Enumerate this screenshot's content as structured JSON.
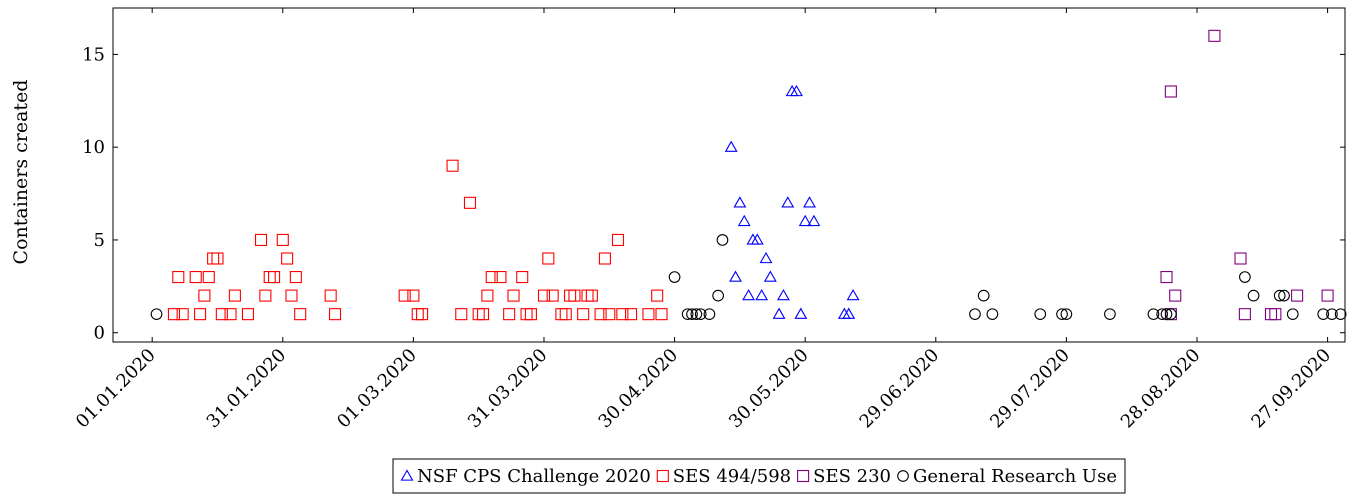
{
  "chart_data": {
    "type": "scatter",
    "title": "",
    "xlabel": "",
    "ylabel": "Containers created",
    "x_tick_labels": [
      "01.01.2020",
      "31.01.2020",
      "01.03.2020",
      "31.03.2020",
      "30.04.2020",
      "30.05.2020",
      "29.06.2020",
      "29.07.2020",
      "28.08.2020",
      "27.09.2020"
    ],
    "x_ticks": [
      "2020-01-01",
      "2020-01-31",
      "2020-03-01",
      "2020-03-31",
      "2020-04-30",
      "2020-05-30",
      "2020-06-29",
      "2020-07-29",
      "2020-08-28",
      "2020-09-27"
    ],
    "xlim": [
      "2019-12-23",
      "2020-10-01"
    ],
    "ylim": [
      -0.5,
      17.5
    ],
    "y_ticks": [
      0,
      5,
      10,
      15
    ],
    "grid": false,
    "legend_position": "bottom-center",
    "series": [
      {
        "name": "NSF CPS Challenge 2020",
        "marker": "triangle",
        "color": "#0000ff",
        "points": [
          [
            "2020-05-13",
            10
          ],
          [
            "2020-05-14",
            3
          ],
          [
            "2020-05-15",
            7
          ],
          [
            "2020-05-16",
            6
          ],
          [
            "2020-05-17",
            2
          ],
          [
            "2020-05-18",
            5
          ],
          [
            "2020-05-19",
            5
          ],
          [
            "2020-05-20",
            2
          ],
          [
            "2020-05-21",
            4
          ],
          [
            "2020-05-22",
            3
          ],
          [
            "2020-05-24",
            1
          ],
          [
            "2020-05-25",
            2
          ],
          [
            "2020-05-26",
            7
          ],
          [
            "2020-05-27",
            13
          ],
          [
            "2020-05-28",
            13
          ],
          [
            "2020-05-29",
            1
          ],
          [
            "2020-05-30",
            6
          ],
          [
            "2020-05-31",
            7
          ],
          [
            "2020-06-01",
            6
          ],
          [
            "2020-06-08",
            1
          ],
          [
            "2020-06-09",
            1
          ],
          [
            "2020-06-10",
            2
          ]
        ]
      },
      {
        "name": "SES 494/598",
        "marker": "square",
        "color": "#ff0000",
        "points": [
          [
            "2020-01-06",
            1
          ],
          [
            "2020-01-07",
            3
          ],
          [
            "2020-01-08",
            1
          ],
          [
            "2020-01-11",
            3
          ],
          [
            "2020-01-12",
            1
          ],
          [
            "2020-01-13",
            2
          ],
          [
            "2020-01-14",
            3
          ],
          [
            "2020-01-15",
            4
          ],
          [
            "2020-01-16",
            4
          ],
          [
            "2020-01-17",
            1
          ],
          [
            "2020-01-19",
            1
          ],
          [
            "2020-01-20",
            2
          ],
          [
            "2020-01-23",
            1
          ],
          [
            "2020-01-26",
            5
          ],
          [
            "2020-01-27",
            2
          ],
          [
            "2020-01-28",
            3
          ],
          [
            "2020-01-29",
            3
          ],
          [
            "2020-01-31",
            5
          ],
          [
            "2020-02-01",
            4
          ],
          [
            "2020-02-02",
            2
          ],
          [
            "2020-02-03",
            3
          ],
          [
            "2020-02-04",
            1
          ],
          [
            "2020-02-11",
            2
          ],
          [
            "2020-02-12",
            1
          ],
          [
            "2020-02-28",
            2
          ],
          [
            "2020-03-01",
            2
          ],
          [
            "2020-03-02",
            1
          ],
          [
            "2020-03-03",
            1
          ],
          [
            "2020-03-10",
            9
          ],
          [
            "2020-03-12",
            1
          ],
          [
            "2020-03-14",
            7
          ],
          [
            "2020-03-16",
            1
          ],
          [
            "2020-03-17",
            1
          ],
          [
            "2020-03-18",
            2
          ],
          [
            "2020-03-19",
            3
          ],
          [
            "2020-03-21",
            3
          ],
          [
            "2020-03-23",
            1
          ],
          [
            "2020-03-24",
            2
          ],
          [
            "2020-03-26",
            3
          ],
          [
            "2020-03-27",
            1
          ],
          [
            "2020-03-28",
            1
          ],
          [
            "2020-03-31",
            2
          ],
          [
            "2020-04-01",
            4
          ],
          [
            "2020-04-02",
            2
          ],
          [
            "2020-04-04",
            1
          ],
          [
            "2020-04-05",
            1
          ],
          [
            "2020-04-06",
            2
          ],
          [
            "2020-04-07",
            2
          ],
          [
            "2020-04-09",
            1
          ],
          [
            "2020-04-10",
            2
          ],
          [
            "2020-04-11",
            2
          ],
          [
            "2020-04-13",
            1
          ],
          [
            "2020-04-14",
            4
          ],
          [
            "2020-04-15",
            1
          ],
          [
            "2020-04-17",
            5
          ],
          [
            "2020-04-18",
            1
          ],
          [
            "2020-04-20",
            1
          ],
          [
            "2020-04-24",
            1
          ],
          [
            "2020-04-26",
            2
          ],
          [
            "2020-04-27",
            1
          ]
        ]
      },
      {
        "name": "SES 230",
        "marker": "square",
        "color": "#800080",
        "points": [
          [
            "2020-08-21",
            3
          ],
          [
            "2020-08-22",
            1
          ],
          [
            "2020-08-22",
            13
          ],
          [
            "2020-08-23",
            2
          ],
          [
            "2020-09-01",
            16
          ],
          [
            "2020-09-07",
            4
          ],
          [
            "2020-09-08",
            1
          ],
          [
            "2020-09-14",
            1
          ],
          [
            "2020-09-15",
            1
          ],
          [
            "2020-09-20",
            2
          ],
          [
            "2020-09-27",
            2
          ]
        ]
      },
      {
        "name": "General Research Use",
        "marker": "circle",
        "color": "#000000",
        "points": [
          [
            "2020-01-02",
            1
          ],
          [
            "2020-04-30",
            3
          ],
          [
            "2020-05-03",
            1
          ],
          [
            "2020-05-04",
            1
          ],
          [
            "2020-05-05",
            1
          ],
          [
            "2020-05-06",
            1
          ],
          [
            "2020-05-08",
            1
          ],
          [
            "2020-05-10",
            2
          ],
          [
            "2020-05-11",
            5
          ],
          [
            "2020-07-08",
            1
          ],
          [
            "2020-07-10",
            2
          ],
          [
            "2020-07-12",
            1
          ],
          [
            "2020-07-23",
            1
          ],
          [
            "2020-07-28",
            1
          ],
          [
            "2020-07-29",
            1
          ],
          [
            "2020-08-08",
            1
          ],
          [
            "2020-08-18",
            1
          ],
          [
            "2020-08-20",
            1
          ],
          [
            "2020-08-21",
            1
          ],
          [
            "2020-08-22",
            1
          ],
          [
            "2020-09-08",
            3
          ],
          [
            "2020-09-10",
            2
          ],
          [
            "2020-09-16",
            2
          ],
          [
            "2020-09-17",
            2
          ],
          [
            "2020-09-19",
            1
          ],
          [
            "2020-09-26",
            1
          ],
          [
            "2020-09-28",
            1
          ],
          [
            "2020-09-30",
            1
          ]
        ]
      }
    ]
  }
}
